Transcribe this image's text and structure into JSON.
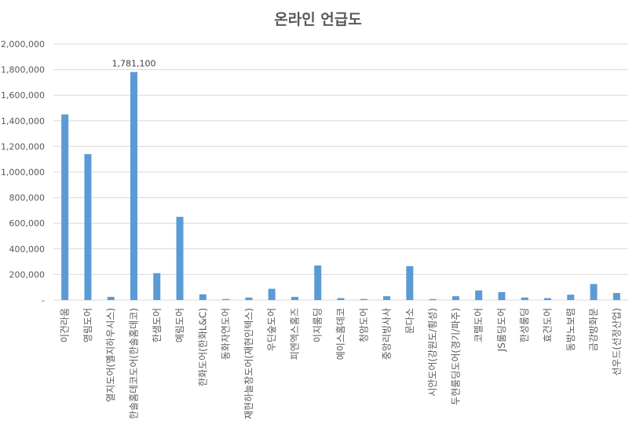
{
  "chart_data": {
    "type": "bar",
    "title": "온라인 언급도",
    "xlabel": "",
    "ylabel": "",
    "ylim": [
      0,
      2000000
    ],
    "yticks": [
      0,
      200000,
      400000,
      600000,
      800000,
      1000000,
      1200000,
      1400000,
      1600000,
      1800000,
      2000000
    ],
    "ytick_labels": [
      "-",
      "200,000",
      "400,000",
      "600,000",
      "800,000",
      "1,000,000",
      "1,200,000",
      "1,400,000",
      "1,600,000",
      "1,800,000",
      "2,000,000"
    ],
    "grid": true,
    "legend": "none",
    "bar_color": "#5B9BD5",
    "grid_color": "#D9D9D9",
    "categories": [
      "이건라움",
      "영림도어",
      "열지도어(옐지하우시스)",
      "한솔홈데코도어(한솔홈데코)",
      "한샘도어",
      "예림도어",
      "한화도어(한화L&C)",
      "동화자연도어",
      "재현하늘창도어(재현인텍스)",
      "우딘숲도어",
      "피엔엑스홈즈",
      "이지룸딩",
      "예이스홈데코",
      "청암도어",
      "중앙리빙사사",
      "문다소",
      "시안도어(강원도/횡성)",
      "두현룸딩도어(경기/파주)",
      "코렐도어",
      "JS룸딩도어",
      "한성룸딩",
      "효건도어",
      "동방노보렴",
      "금강방화문",
      "선우드(선정산업)"
    ],
    "values": [
      1450000,
      1140000,
      25000,
      1781100,
      210000,
      650000,
      45000,
      8000,
      20000,
      88000,
      25000,
      270000,
      15000,
      8000,
      30000,
      265000,
      8000,
      30000,
      75000,
      62000,
      20000,
      15000,
      42000,
      125000,
      55000
    ],
    "data_labels": [
      {
        "index": 3,
        "text": "1,781,100"
      }
    ]
  }
}
